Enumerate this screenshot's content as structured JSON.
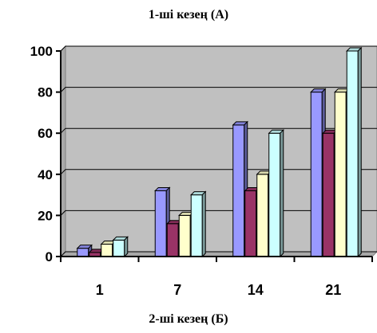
{
  "title_top": "1-ші кезең (А)",
  "title_bottom": "2-ші кезең (Б)",
  "chart_data": {
    "type": "bar",
    "style": "3d-clustered-column",
    "categories": [
      "1",
      "7",
      "14",
      "21"
    ],
    "series": [
      {
        "color": "#9999ff",
        "values": [
          4,
          32,
          64,
          80
        ]
      },
      {
        "color": "#993366",
        "values": [
          2,
          16,
          32,
          60
        ]
      },
      {
        "color": "#ffffcc",
        "values": [
          6,
          20,
          40,
          80
        ]
      },
      {
        "color": "#ccffff",
        "values": [
          8,
          30,
          60,
          100
        ]
      }
    ],
    "ylim": [
      0,
      100
    ],
    "yticks": [
      0,
      20,
      40,
      60,
      80,
      100
    ],
    "grid": true,
    "plot_background": "#c0c0c0"
  }
}
